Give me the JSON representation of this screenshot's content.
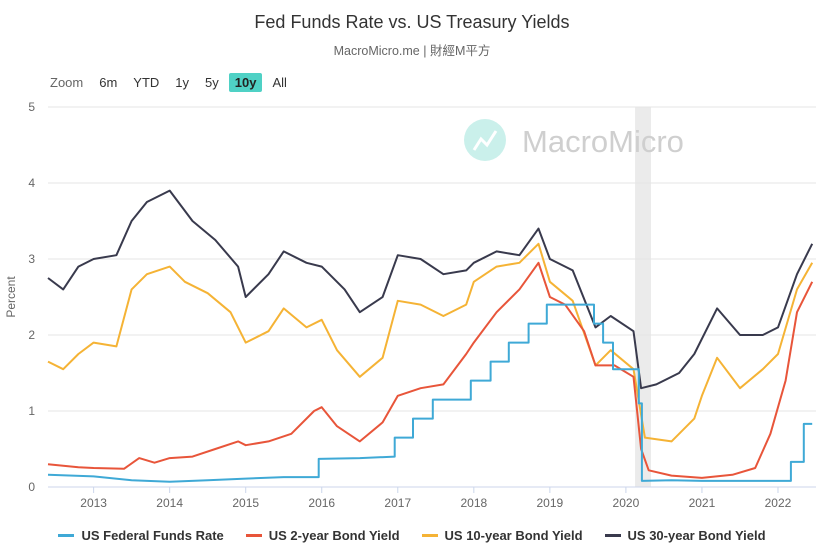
{
  "header": {
    "title": "Fed Funds Rate vs. US Treasury Yields",
    "subtitle": "MacroMicro.me | 財經M平方"
  },
  "zoom": {
    "label": "Zoom",
    "buttons": [
      "6m",
      "YTD",
      "1y",
      "5y",
      "10y",
      "All"
    ],
    "selected": "10y"
  },
  "watermark": "MacroMicro",
  "chart_data": {
    "type": "line",
    "title": "Fed Funds Rate vs. US Treasury Yields",
    "xlabel": "",
    "ylabel": "Percent",
    "ylim": [
      0,
      5
    ],
    "xlim": [
      2012.4,
      2022.5
    ],
    "yticks": [
      "0",
      "1",
      "2",
      "3",
      "4",
      "5"
    ],
    "xticks": [
      "2013",
      "2014",
      "2015",
      "2016",
      "2017",
      "2018",
      "2019",
      "2020",
      "2021",
      "2022"
    ],
    "grid": "horizontal",
    "legend_position": "bottom",
    "shaded_region": [
      2020.12,
      2020.33
    ],
    "series": [
      {
        "name": "US Federal Funds Rate",
        "color": "#3fa9d6",
        "step": true,
        "points": [
          [
            2012.4,
            0.16
          ],
          [
            2013.0,
            0.14
          ],
          [
            2013.5,
            0.09
          ],
          [
            2014.0,
            0.07
          ],
          [
            2014.5,
            0.09
          ],
          [
            2015.0,
            0.11
          ],
          [
            2015.5,
            0.13
          ],
          [
            2015.96,
            0.13
          ],
          [
            2015.96,
            0.37
          ],
          [
            2016.5,
            0.38
          ],
          [
            2016.96,
            0.4
          ],
          [
            2016.96,
            0.65
          ],
          [
            2017.2,
            0.65
          ],
          [
            2017.2,
            0.9
          ],
          [
            2017.46,
            0.9
          ],
          [
            2017.46,
            1.15
          ],
          [
            2017.96,
            1.15
          ],
          [
            2017.96,
            1.4
          ],
          [
            2018.22,
            1.4
          ],
          [
            2018.22,
            1.65
          ],
          [
            2018.46,
            1.65
          ],
          [
            2018.46,
            1.9
          ],
          [
            2018.72,
            1.9
          ],
          [
            2018.72,
            2.15
          ],
          [
            2018.96,
            2.15
          ],
          [
            2018.96,
            2.4
          ],
          [
            2019.58,
            2.4
          ],
          [
            2019.58,
            2.15
          ],
          [
            2019.7,
            2.15
          ],
          [
            2019.7,
            1.9
          ],
          [
            2019.83,
            1.9
          ],
          [
            2019.83,
            1.55
          ],
          [
            2020.17,
            1.55
          ],
          [
            2020.17,
            1.1
          ],
          [
            2020.21,
            1.1
          ],
          [
            2020.21,
            0.08
          ],
          [
            2020.6,
            0.09
          ],
          [
            2021.0,
            0.08
          ],
          [
            2021.5,
            0.08
          ],
          [
            2022.17,
            0.08
          ],
          [
            2022.17,
            0.33
          ],
          [
            2022.34,
            0.33
          ],
          [
            2022.34,
            0.83
          ],
          [
            2022.45,
            0.83
          ]
        ]
      },
      {
        "name": "US 2-year Bond Yield",
        "color": "#e8553a",
        "points": [
          [
            2012.4,
            0.3
          ],
          [
            2012.8,
            0.26
          ],
          [
            2013.0,
            0.25
          ],
          [
            2013.4,
            0.24
          ],
          [
            2013.6,
            0.38
          ],
          [
            2013.8,
            0.32
          ],
          [
            2014.0,
            0.38
          ],
          [
            2014.3,
            0.4
          ],
          [
            2014.6,
            0.5
          ],
          [
            2014.9,
            0.6
          ],
          [
            2015.0,
            0.55
          ],
          [
            2015.3,
            0.6
          ],
          [
            2015.6,
            0.7
          ],
          [
            2015.9,
            1.0
          ],
          [
            2016.0,
            1.05
          ],
          [
            2016.2,
            0.8
          ],
          [
            2016.5,
            0.6
          ],
          [
            2016.8,
            0.85
          ],
          [
            2017.0,
            1.2
          ],
          [
            2017.3,
            1.3
          ],
          [
            2017.6,
            1.35
          ],
          [
            2017.9,
            1.75
          ],
          [
            2018.0,
            1.9
          ],
          [
            2018.3,
            2.3
          ],
          [
            2018.6,
            2.6
          ],
          [
            2018.85,
            2.95
          ],
          [
            2019.0,
            2.5
          ],
          [
            2019.2,
            2.4
          ],
          [
            2019.45,
            2.05
          ],
          [
            2019.6,
            1.6
          ],
          [
            2019.85,
            1.6
          ],
          [
            2020.1,
            1.45
          ],
          [
            2020.2,
            0.5
          ],
          [
            2020.3,
            0.22
          ],
          [
            2020.6,
            0.15
          ],
          [
            2021.0,
            0.12
          ],
          [
            2021.4,
            0.16
          ],
          [
            2021.7,
            0.25
          ],
          [
            2021.9,
            0.7
          ],
          [
            2022.1,
            1.4
          ],
          [
            2022.25,
            2.3
          ],
          [
            2022.45,
            2.7
          ]
        ]
      },
      {
        "name": "US 10-year Bond Yield",
        "color": "#f5b335",
        "points": [
          [
            2012.4,
            1.65
          ],
          [
            2012.6,
            1.55
          ],
          [
            2012.8,
            1.75
          ],
          [
            2013.0,
            1.9
          ],
          [
            2013.3,
            1.85
          ],
          [
            2013.5,
            2.6
          ],
          [
            2013.7,
            2.8
          ],
          [
            2014.0,
            2.9
          ],
          [
            2014.2,
            2.7
          ],
          [
            2014.5,
            2.55
          ],
          [
            2014.8,
            2.3
          ],
          [
            2015.0,
            1.9
          ],
          [
            2015.3,
            2.05
          ],
          [
            2015.5,
            2.35
          ],
          [
            2015.8,
            2.1
          ],
          [
            2016.0,
            2.2
          ],
          [
            2016.2,
            1.8
          ],
          [
            2016.5,
            1.45
          ],
          [
            2016.8,
            1.7
          ],
          [
            2017.0,
            2.45
          ],
          [
            2017.3,
            2.4
          ],
          [
            2017.6,
            2.25
          ],
          [
            2017.9,
            2.4
          ],
          [
            2018.0,
            2.7
          ],
          [
            2018.3,
            2.9
          ],
          [
            2018.6,
            2.95
          ],
          [
            2018.85,
            3.2
          ],
          [
            2019.0,
            2.7
          ],
          [
            2019.3,
            2.45
          ],
          [
            2019.6,
            1.6
          ],
          [
            2019.8,
            1.8
          ],
          [
            2020.1,
            1.55
          ],
          [
            2020.25,
            0.65
          ],
          [
            2020.6,
            0.6
          ],
          [
            2020.9,
            0.9
          ],
          [
            2021.0,
            1.2
          ],
          [
            2021.2,
            1.7
          ],
          [
            2021.5,
            1.3
          ],
          [
            2021.8,
            1.55
          ],
          [
            2022.0,
            1.75
          ],
          [
            2022.25,
            2.6
          ],
          [
            2022.45,
            2.95
          ]
        ]
      },
      {
        "name": "US 30-year Bond Yield",
        "color": "#393a4d",
        "points": [
          [
            2012.4,
            2.75
          ],
          [
            2012.6,
            2.6
          ],
          [
            2012.8,
            2.9
          ],
          [
            2013.0,
            3.0
          ],
          [
            2013.3,
            3.05
          ],
          [
            2013.5,
            3.5
          ],
          [
            2013.7,
            3.75
          ],
          [
            2014.0,
            3.9
          ],
          [
            2014.3,
            3.5
          ],
          [
            2014.6,
            3.25
          ],
          [
            2014.9,
            2.9
          ],
          [
            2015.0,
            2.5
          ],
          [
            2015.3,
            2.8
          ],
          [
            2015.5,
            3.1
          ],
          [
            2015.8,
            2.95
          ],
          [
            2016.0,
            2.9
          ],
          [
            2016.3,
            2.6
          ],
          [
            2016.5,
            2.3
          ],
          [
            2016.8,
            2.5
          ],
          [
            2017.0,
            3.05
          ],
          [
            2017.3,
            3.0
          ],
          [
            2017.6,
            2.8
          ],
          [
            2017.9,
            2.85
          ],
          [
            2018.0,
            2.95
          ],
          [
            2018.3,
            3.1
          ],
          [
            2018.6,
            3.05
          ],
          [
            2018.85,
            3.4
          ],
          [
            2019.0,
            3.0
          ],
          [
            2019.3,
            2.85
          ],
          [
            2019.6,
            2.1
          ],
          [
            2019.8,
            2.25
          ],
          [
            2020.1,
            2.05
          ],
          [
            2020.2,
            1.3
          ],
          [
            2020.4,
            1.35
          ],
          [
            2020.7,
            1.5
          ],
          [
            2020.9,
            1.75
          ],
          [
            2021.2,
            2.35
          ],
          [
            2021.5,
            2.0
          ],
          [
            2021.8,
            2.0
          ],
          [
            2022.0,
            2.1
          ],
          [
            2022.25,
            2.8
          ],
          [
            2022.45,
            3.2
          ]
        ]
      }
    ]
  }
}
